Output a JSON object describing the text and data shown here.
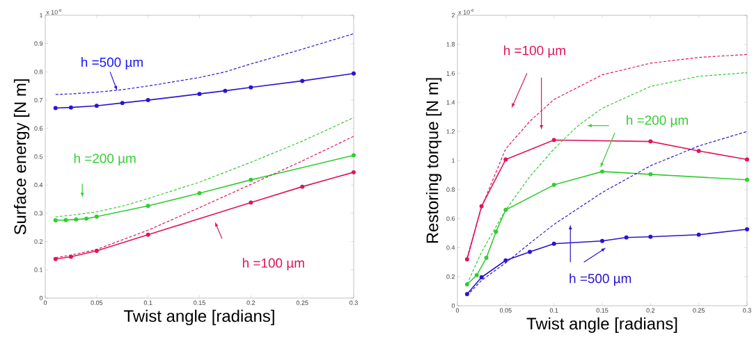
{
  "chart_data": [
    {
      "type": "line",
      "xlabel": "Twist angle [radians]",
      "ylabel": "Surface energy [N m]",
      "xlim": [
        0,
        0.3
      ],
      "ylim": [
        0,
        1
      ],
      "xticks": [
        0,
        0.05,
        0.1,
        0.15,
        0.2,
        0.25,
        0.3
      ],
      "yticks": [
        0,
        0.1,
        0.2,
        0.3,
        0.4,
        0.5,
        0.6,
        0.7,
        0.8,
        0.9,
        1
      ],
      "grid": false,
      "annotations": [
        "x 10$^{-6}$",
        "h =500 µm",
        "h =200 µm",
        "h =100 µm"
      ],
      "series": [
        {
          "color": "#2a14d2",
          "marker": "circle",
          "line_style": "solid",
          "x": [
            0.01,
            0.025,
            0.05,
            0.075,
            0.1,
            0.15,
            0.175,
            0.2,
            0.25,
            0.3
          ],
          "values": [
            0.672,
            0.674,
            0.68,
            0.69,
            0.7,
            0.722,
            0.733,
            0.745,
            0.768,
            0.794
          ]
        },
        {
          "color": "#2a14d2",
          "marker": "none",
          "line_style": "dashed",
          "x": [
            0.01,
            0.025,
            0.05,
            0.075,
            0.1,
            0.15,
            0.175,
            0.2,
            0.25,
            0.3
          ],
          "values": [
            0.72,
            0.722,
            0.728,
            0.737,
            0.75,
            0.78,
            0.8,
            0.828,
            0.88,
            0.935
          ]
        },
        {
          "color": "#33cc33",
          "marker": "circle",
          "line_style": "solid",
          "x": [
            0.01,
            0.02,
            0.03,
            0.04,
            0.05,
            0.1,
            0.15,
            0.2,
            0.3
          ],
          "values": [
            0.275,
            0.276,
            0.278,
            0.281,
            0.288,
            0.326,
            0.371,
            0.418,
            0.505
          ]
        },
        {
          "color": "#33cc33",
          "marker": "none",
          "line_style": "dashed",
          "x": [
            0.01,
            0.025,
            0.05,
            0.075,
            0.1,
            0.15,
            0.2,
            0.25,
            0.3
          ],
          "values": [
            0.287,
            0.293,
            0.305,
            0.325,
            0.352,
            0.41,
            0.48,
            0.555,
            0.638
          ]
        },
        {
          "color": "#e0145a",
          "marker": "circle",
          "line_style": "solid",
          "x": [
            0.01,
            0.025,
            0.05,
            0.1,
            0.2,
            0.25,
            0.3
          ],
          "values": [
            0.138,
            0.146,
            0.167,
            0.224,
            0.338,
            0.394,
            0.445
          ]
        },
        {
          "color": "#e0145a",
          "marker": "none",
          "line_style": "dashed",
          "x": [
            0.01,
            0.025,
            0.05,
            0.1,
            0.15,
            0.2,
            0.25,
            0.3
          ],
          "values": [
            0.143,
            0.152,
            0.172,
            0.24,
            0.32,
            0.402,
            0.485,
            0.572
          ]
        }
      ]
    },
    {
      "type": "line",
      "xlabel": "Twist angle [radians]",
      "ylabel": "Restoring torque [N m]",
      "xlim": [
        0,
        0.3
      ],
      "ylim": [
        0,
        2
      ],
      "xticks": [
        0,
        0.05,
        0.1,
        0.15,
        0.2,
        0.25,
        0.3
      ],
      "yticks": [
        0,
        0.2,
        0.4,
        0.6,
        0.8,
        1,
        1.2,
        1.4,
        1.6,
        1.8,
        2
      ],
      "grid": false,
      "annotations": [
        "x 10$^{-6}$",
        "h =100 µm",
        "h =200 µm",
        "h =500 µm"
      ],
      "series": [
        {
          "color": "#e0145a",
          "marker": "circle",
          "line_style": "solid",
          "x": [
            0.01,
            0.025,
            0.05,
            0.1,
            0.2,
            0.25,
            0.3
          ],
          "values": [
            0.319,
            0.685,
            1.007,
            1.141,
            1.131,
            1.066,
            1.007
          ]
        },
        {
          "color": "#e0145a",
          "marker": "none",
          "line_style": "dashed",
          "x": [
            0.01,
            0.025,
            0.05,
            0.075,
            0.1,
            0.15,
            0.2,
            0.25,
            0.3
          ],
          "values": [
            0.33,
            0.68,
            1.08,
            1.27,
            1.42,
            1.59,
            1.67,
            1.71,
            1.73
          ]
        },
        {
          "color": "#33cc33",
          "marker": "circle",
          "line_style": "solid",
          "x": [
            0.01,
            0.02,
            0.03,
            0.04,
            0.05,
            0.1,
            0.15,
            0.2,
            0.3
          ],
          "values": [
            0.147,
            0.21,
            0.33,
            0.51,
            0.66,
            0.832,
            0.924,
            0.905,
            0.867
          ]
        },
        {
          "color": "#33cc33",
          "marker": "none",
          "line_style": "dashed",
          "x": [
            0.01,
            0.025,
            0.05,
            0.075,
            0.1,
            0.125,
            0.15,
            0.2,
            0.25,
            0.3
          ],
          "values": [
            0.15,
            0.37,
            0.66,
            0.89,
            1.08,
            1.24,
            1.36,
            1.51,
            1.58,
            1.605
          ]
        },
        {
          "color": "#2a14d2",
          "marker": "circle",
          "line_style": "solid",
          "x": [
            0.01,
            0.025,
            0.05,
            0.075,
            0.1,
            0.15,
            0.175,
            0.2,
            0.25,
            0.3
          ],
          "values": [
            0.08,
            0.196,
            0.312,
            0.371,
            0.427,
            0.446,
            0.47,
            0.475,
            0.489,
            0.526
          ]
        },
        {
          "color": "#2a14d2",
          "marker": "none",
          "line_style": "dashed",
          "x": [
            0.01,
            0.025,
            0.05,
            0.075,
            0.1,
            0.15,
            0.2,
            0.25,
            0.3
          ],
          "values": [
            0.07,
            0.175,
            0.295,
            0.43,
            0.56,
            0.78,
            0.964,
            1.1,
            1.2
          ]
        }
      ]
    }
  ]
}
